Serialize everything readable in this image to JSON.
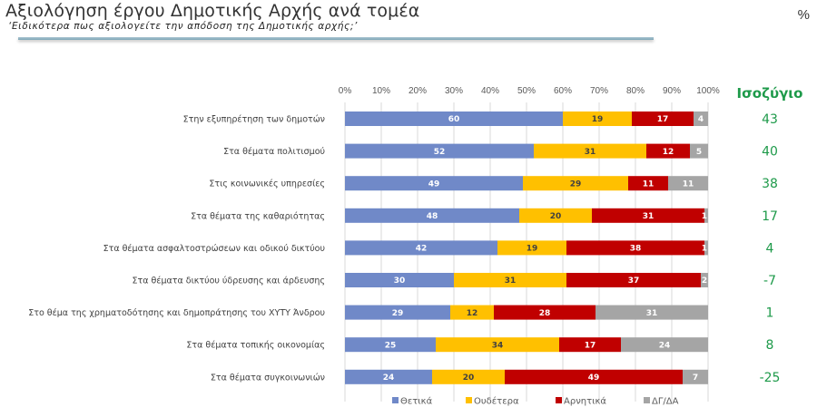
{
  "header": {
    "title": "Αξιολόγηση έργου Δημοτικής Αρχής ανά τομέα",
    "subtitle": "‘Ειδικότερα πως αξιολογείτε την απόδοση της Δημοτικής αρχής;’",
    "unit": "%"
  },
  "chart_data": {
    "type": "bar",
    "orientation": "horizontal",
    "stacked": "percent",
    "title": "Αξιολόγηση έργου Δημοτικής Αρχής ανά τομέα",
    "subtitle": "‘Ειδικότερα πως αξιολογείτε την απόδοση της Δημοτικής αρχής;’",
    "xlabel": "",
    "ylabel": "",
    "xlim": [
      0,
      100
    ],
    "x_ticks": [
      "0%",
      "10%",
      "20%",
      "30%",
      "40%",
      "50%",
      "60%",
      "70%",
      "80%",
      "90%",
      "100%"
    ],
    "grid": true,
    "legend_position": "bottom",
    "categories": [
      "Στην εξυπηρέτηση των δημοτών",
      "Στα θέματα πολιτισμού",
      "Στις κοινωνικές υπηρεσίες",
      "Στα θέματα της καθαριότητας",
      "Στα θέματα ασφαλτοστρώσεων και οδικού δικτύου",
      "Στα θέματα δικτύου ύδρευσης και άρδευσης",
      "Στο θέμα της χρηματοδότησης και δημοπράτησης του ΧΥΤΥ Άνδρου",
      "Στα θέματα τοπικής οικονομίας",
      "Στα θέματα συγκοινωνιών"
    ],
    "series": [
      {
        "name": "Θετικά",
        "color": "#7089c8",
        "label_color": "#ffffff",
        "values": [
          60,
          52,
          49,
          48,
          42,
          30,
          29,
          25,
          24
        ]
      },
      {
        "name": "Ουδέτερα",
        "color": "#ffc000",
        "label_color": "#404040",
        "values": [
          19,
          31,
          29,
          20,
          19,
          31,
          12,
          34,
          20
        ]
      },
      {
        "name": "Αρνητικά",
        "color": "#c00000",
        "label_color": "#ffffff",
        "values": [
          17,
          12,
          11,
          31,
          38,
          37,
          28,
          17,
          49
        ]
      },
      {
        "name": "ΔΓ/ΔΑ",
        "color": "#a5a5a5",
        "label_color": "#ffffff",
        "values": [
          4,
          5,
          11,
          1,
          1,
          2,
          31,
          24,
          7
        ]
      }
    ],
    "balance": {
      "title": "Ισοζύγιο",
      "values": [
        "43",
        "40",
        "38",
        "17",
        "4",
        "-7",
        "1",
        "8",
        "-25"
      ]
    }
  }
}
